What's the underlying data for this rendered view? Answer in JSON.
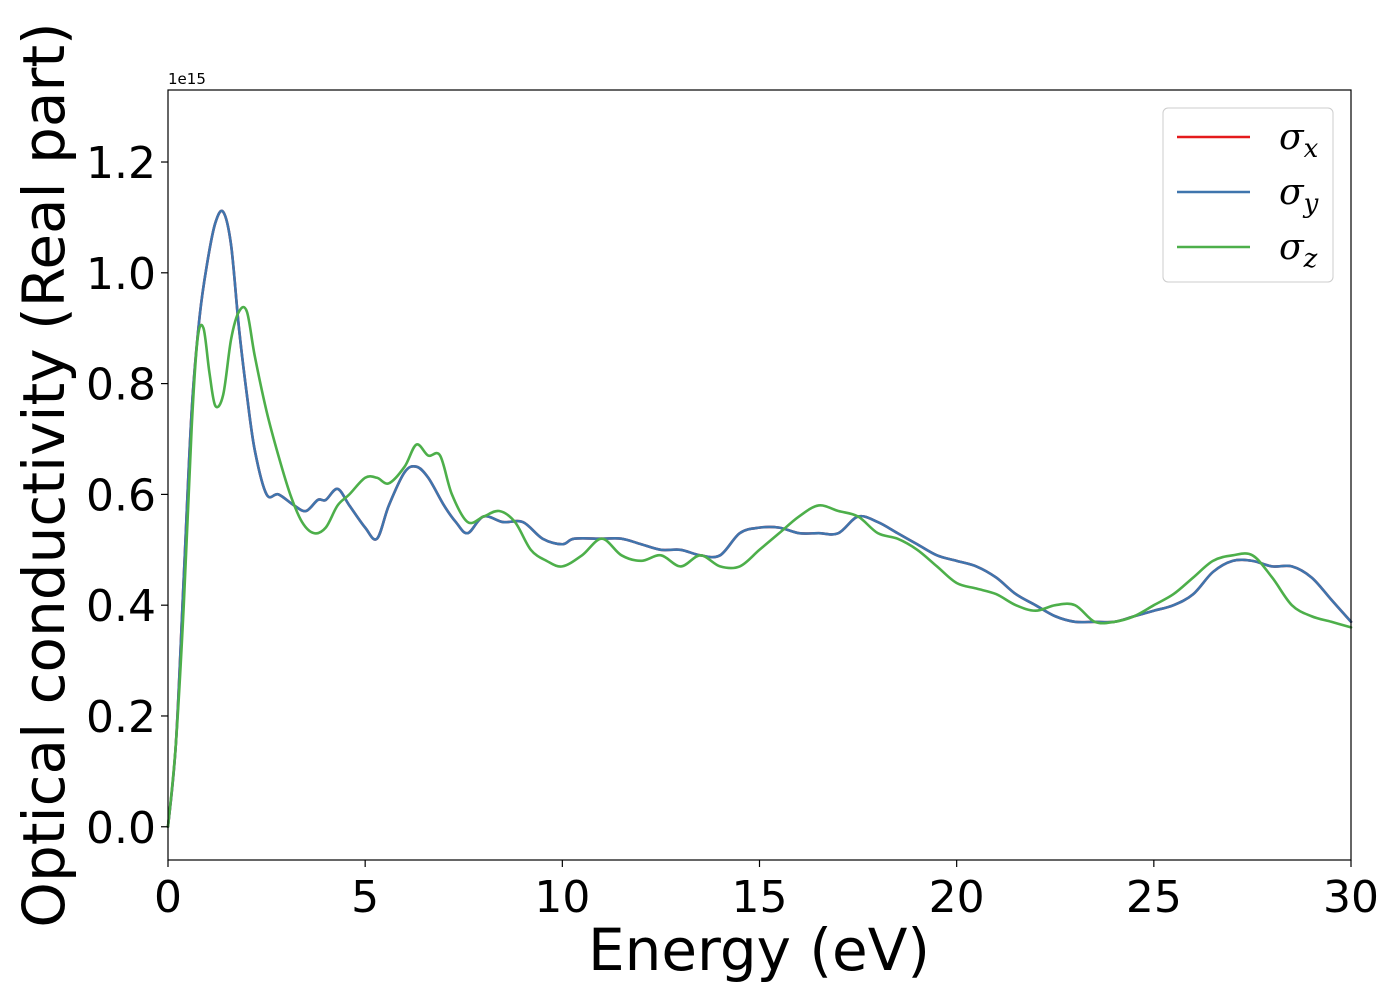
{
  "chart_data": {
    "type": "line",
    "title": "",
    "xlabel": "Energy (eV)",
    "ylabel": "Optical conductivity (Real part)",
    "y_offset_text": "1e15",
    "xlim": [
      0,
      30
    ],
    "ylim": [
      -0.06,
      1.33
    ],
    "xticks": [
      0,
      5,
      10,
      15,
      20,
      25,
      30
    ],
    "xtick_labels": [
      "0",
      "5",
      "10",
      "15",
      "20",
      "25",
      "30"
    ],
    "yticks": [
      0.0,
      0.2,
      0.4,
      0.6,
      0.8,
      1.0,
      1.2
    ],
    "ytick_labels": [
      "0.0",
      "0.2",
      "0.4",
      "0.6",
      "0.8",
      "1.0",
      "1.2"
    ],
    "grid": false,
    "legend_position": "top-right",
    "series": [
      {
        "name": "σx",
        "symbol": "σ",
        "subscript": "x",
        "color": "#e41a1c",
        "x": [
          0,
          0.2,
          0.4,
          0.6,
          0.8,
          1.0,
          1.2,
          1.4,
          1.6,
          1.8,
          2.0,
          2.2,
          2.5,
          2.8,
          3.2,
          3.5,
          3.8,
          4.0,
          4.3,
          4.6,
          5.0,
          5.3,
          5.6,
          6.0,
          6.3,
          6.6,
          7.0,
          7.3,
          7.6,
          8.0,
          8.5,
          9.0,
          9.5,
          10.0,
          10.3,
          11.0,
          11.5,
          12.0,
          12.5,
          13.0,
          13.5,
          14.0,
          14.5,
          15.0,
          15.5,
          16.0,
          16.5,
          17.0,
          17.5,
          18.0,
          18.5,
          19.0,
          19.5,
          20.0,
          20.5,
          21.0,
          21.5,
          22.0,
          22.5,
          23.0,
          23.5,
          24.0,
          24.5,
          25.0,
          25.5,
          26.0,
          26.5,
          27.0,
          27.5,
          28.0,
          28.5,
          29.0,
          29.5,
          30.0
        ],
        "y": [
          0.0,
          0.15,
          0.45,
          0.75,
          0.92,
          1.02,
          1.09,
          1.11,
          1.05,
          0.9,
          0.78,
          0.68,
          0.6,
          0.6,
          0.58,
          0.57,
          0.59,
          0.59,
          0.61,
          0.58,
          0.54,
          0.52,
          0.58,
          0.64,
          0.65,
          0.63,
          0.58,
          0.55,
          0.53,
          0.56,
          0.55,
          0.55,
          0.52,
          0.51,
          0.52,
          0.52,
          0.52,
          0.51,
          0.5,
          0.5,
          0.49,
          0.49,
          0.53,
          0.54,
          0.54,
          0.53,
          0.53,
          0.53,
          0.56,
          0.55,
          0.53,
          0.51,
          0.49,
          0.48,
          0.47,
          0.45,
          0.42,
          0.4,
          0.38,
          0.37,
          0.37,
          0.37,
          0.38,
          0.39,
          0.4,
          0.42,
          0.46,
          0.48,
          0.48,
          0.47,
          0.47,
          0.45,
          0.41,
          0.37
        ]
      },
      {
        "name": "σy",
        "symbol": "σ",
        "subscript": "y",
        "color": "#3f75ad",
        "x": [
          0,
          0.2,
          0.4,
          0.6,
          0.8,
          1.0,
          1.2,
          1.4,
          1.6,
          1.8,
          2.0,
          2.2,
          2.5,
          2.8,
          3.2,
          3.5,
          3.8,
          4.0,
          4.3,
          4.6,
          5.0,
          5.3,
          5.6,
          6.0,
          6.3,
          6.6,
          7.0,
          7.3,
          7.6,
          8.0,
          8.5,
          9.0,
          9.5,
          10.0,
          10.3,
          11.0,
          11.5,
          12.0,
          12.5,
          13.0,
          13.5,
          14.0,
          14.5,
          15.0,
          15.5,
          16.0,
          16.5,
          17.0,
          17.5,
          18.0,
          18.5,
          19.0,
          19.5,
          20.0,
          20.5,
          21.0,
          21.5,
          22.0,
          22.5,
          23.0,
          23.5,
          24.0,
          24.5,
          25.0,
          25.5,
          26.0,
          26.5,
          27.0,
          27.5,
          28.0,
          28.5,
          29.0,
          29.5,
          30.0
        ],
        "y": [
          0.0,
          0.15,
          0.45,
          0.75,
          0.92,
          1.02,
          1.09,
          1.11,
          1.05,
          0.9,
          0.78,
          0.68,
          0.6,
          0.6,
          0.58,
          0.57,
          0.59,
          0.59,
          0.61,
          0.58,
          0.54,
          0.52,
          0.58,
          0.64,
          0.65,
          0.63,
          0.58,
          0.55,
          0.53,
          0.56,
          0.55,
          0.55,
          0.52,
          0.51,
          0.52,
          0.52,
          0.52,
          0.51,
          0.5,
          0.5,
          0.49,
          0.49,
          0.53,
          0.54,
          0.54,
          0.53,
          0.53,
          0.53,
          0.56,
          0.55,
          0.53,
          0.51,
          0.49,
          0.48,
          0.47,
          0.45,
          0.42,
          0.4,
          0.38,
          0.37,
          0.37,
          0.37,
          0.38,
          0.39,
          0.4,
          0.42,
          0.46,
          0.48,
          0.48,
          0.47,
          0.47,
          0.45,
          0.41,
          0.37
        ]
      },
      {
        "name": "σz",
        "symbol": "σ",
        "subscript": "z",
        "color": "#4daf4a",
        "x": [
          0,
          0.2,
          0.4,
          0.6,
          0.75,
          0.9,
          1.05,
          1.2,
          1.4,
          1.6,
          1.8,
          2.0,
          2.2,
          2.5,
          2.8,
          3.1,
          3.4,
          3.7,
          4.0,
          4.3,
          4.6,
          5.0,
          5.3,
          5.6,
          6.0,
          6.3,
          6.6,
          6.9,
          7.2,
          7.6,
          8.0,
          8.4,
          8.8,
          9.2,
          9.6,
          10.0,
          10.5,
          11.0,
          11.5,
          12.0,
          12.5,
          13.0,
          13.5,
          14.0,
          14.5,
          15.0,
          15.5,
          16.0,
          16.5,
          17.0,
          17.5,
          18.0,
          18.5,
          19.0,
          19.5,
          20.0,
          20.5,
          21.0,
          21.5,
          22.0,
          22.5,
          23.0,
          23.5,
          24.0,
          24.5,
          25.0,
          25.5,
          26.0,
          26.5,
          27.0,
          27.5,
          28.0,
          28.5,
          29.0,
          29.5,
          30.0
        ],
        "y": [
          0.0,
          0.15,
          0.4,
          0.72,
          0.88,
          0.9,
          0.82,
          0.76,
          0.78,
          0.88,
          0.93,
          0.93,
          0.85,
          0.75,
          0.67,
          0.6,
          0.55,
          0.53,
          0.54,
          0.58,
          0.6,
          0.63,
          0.63,
          0.62,
          0.65,
          0.69,
          0.67,
          0.67,
          0.6,
          0.55,
          0.56,
          0.57,
          0.55,
          0.5,
          0.48,
          0.47,
          0.49,
          0.52,
          0.49,
          0.48,
          0.49,
          0.47,
          0.49,
          0.47,
          0.47,
          0.5,
          0.53,
          0.56,
          0.58,
          0.57,
          0.56,
          0.53,
          0.52,
          0.5,
          0.47,
          0.44,
          0.43,
          0.42,
          0.4,
          0.39,
          0.4,
          0.4,
          0.37,
          0.37,
          0.38,
          0.4,
          0.42,
          0.45,
          0.48,
          0.49,
          0.49,
          0.45,
          0.4,
          0.38,
          0.37,
          0.36
        ]
      }
    ]
  }
}
